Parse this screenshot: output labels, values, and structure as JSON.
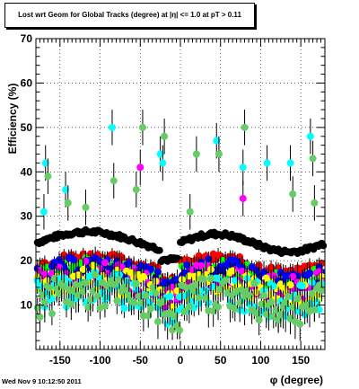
{
  "chart_data": {
    "type": "scatter",
    "title": "Lost wrt Geom for Global Tracks (degree) at |η| <= 1.0 at pT > 0.11",
    "xlabel": "φ (degree)",
    "ylabel": "Efficiency (%)",
    "xlim": [
      -180,
      180
    ],
    "ylim": [
      0,
      70
    ],
    "xticks": [
      -150,
      -100,
      -50,
      0,
      50,
      100,
      150
    ],
    "yticks": [
      10,
      20,
      30,
      40,
      50,
      60,
      70
    ],
    "grid": "both",
    "series": [
      {
        "color": "#000000",
        "base": 24,
        "amp": 2.5,
        "jitter": 0.5,
        "errlow": 0.4
      },
      {
        "color": "#ff0000",
        "base": 19,
        "amp": 2,
        "jitter": 1.0,
        "errlow": 0.8
      },
      {
        "color": "#00ff00",
        "base": 17,
        "amp": 2,
        "jitter": 1.8,
        "errlow": 1.3
      },
      {
        "color": "#0000ff",
        "base": 17,
        "amp": 2,
        "jitter": 2.0,
        "errlow": 1.3
      },
      {
        "color": "#ff00ff",
        "base": 15,
        "amp": 2,
        "jitter": 3.0,
        "errlow": 1.5
      },
      {
        "color": "#ffff00",
        "base": 14,
        "amp": 2,
        "jitter": 3.0,
        "errlow": 1.5
      },
      {
        "color": "#00ffff",
        "base": 12,
        "amp": 2,
        "jitter": 4.0,
        "errlow": 1.8
      },
      {
        "color": "#66cc66",
        "base": 11,
        "amp": 2,
        "jitter": 4.0,
        "errlow": 2.0
      }
    ],
    "outliers": [
      {
        "x": -168,
        "y": 42,
        "color": "#00ffff"
      },
      {
        "x": -165,
        "y": 39,
        "color": "#66cc66"
      },
      {
        "x": -170,
        "y": 31,
        "color": "#00ffff"
      },
      {
        "x": -143,
        "y": 36,
        "color": "#00ffff"
      },
      {
        "x": -140,
        "y": 33,
        "color": "#66cc66"
      },
      {
        "x": -118,
        "y": 32,
        "color": "#66cc66"
      },
      {
        "x": -85,
        "y": 50,
        "color": "#00ffff"
      },
      {
        "x": -83,
        "y": 38,
        "color": "#66cc66"
      },
      {
        "x": -47,
        "y": 50,
        "color": "#66cc66"
      },
      {
        "x": -50,
        "y": 41,
        "color": "#ff00ff"
      },
      {
        "x": -55,
        "y": 36,
        "color": "#66cc66"
      },
      {
        "x": -25,
        "y": 44,
        "color": "#00ffff"
      },
      {
        "x": -20,
        "y": 48,
        "color": "#66cc66"
      },
      {
        "x": -22,
        "y": 42,
        "color": "#00ffff"
      },
      {
        "x": 12,
        "y": 31,
        "color": "#66cc66"
      },
      {
        "x": 20,
        "y": 44,
        "color": "#66cc66"
      },
      {
        "x": 45,
        "y": 47,
        "color": "#00ffff"
      },
      {
        "x": 48,
        "y": 44,
        "color": "#66cc66"
      },
      {
        "x": 78,
        "y": 41,
        "color": "#00ffff"
      },
      {
        "x": 80,
        "y": 50,
        "color": "#66cc66"
      },
      {
        "x": 78,
        "y": 34,
        "color": "#ff00ff"
      },
      {
        "x": 108,
        "y": 42,
        "color": "#00ffff"
      },
      {
        "x": 137,
        "y": 42,
        "color": "#00ffff"
      },
      {
        "x": 140,
        "y": 35,
        "color": "#66cc66"
      },
      {
        "x": 162,
        "y": 48,
        "color": "#00ffff"
      },
      {
        "x": 165,
        "y": 43,
        "color": "#66cc66"
      },
      {
        "x": 167,
        "y": 33,
        "color": "#66cc66"
      }
    ]
  },
  "footer": {
    "datestamp": "Wed Nov  9 10:12:50 2011"
  }
}
